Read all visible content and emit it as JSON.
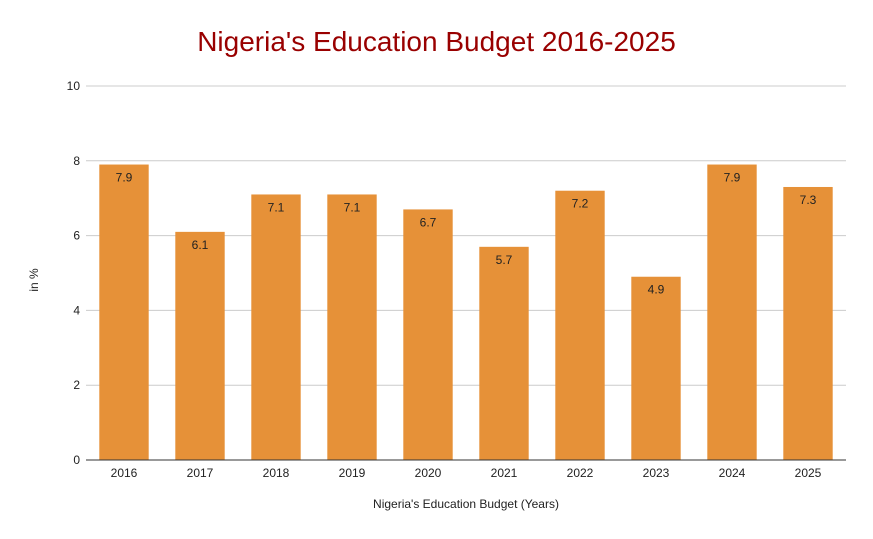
{
  "chart_data": {
    "type": "bar",
    "title": "Nigeria's Education Budget 2016-2025",
    "xlabel": "Nigeria's Education Budget (Years)",
    "ylabel": "in %",
    "categories": [
      "2016",
      "2017",
      "2018",
      "2019",
      "2020",
      "2021",
      "2022",
      "2023",
      "2024",
      "2025"
    ],
    "values": [
      7.9,
      6.1,
      7.1,
      7.1,
      6.7,
      5.7,
      7.2,
      4.9,
      7.9,
      7.3
    ],
    "data_labels": [
      "7.9",
      "6.1",
      "7.1",
      "7.1",
      "6.7",
      "5.7",
      "7.2",
      "4.9",
      "7.9",
      "7.3"
    ],
    "ylim": [
      0,
      10
    ],
    "yticks": [
      "0",
      "2",
      "4",
      "6",
      "8",
      "10"
    ],
    "grid": true,
    "legend": "none"
  },
  "colors": {
    "bar": "#e69138",
    "title": "#990000",
    "grid": "#cccccc",
    "axis": "#333333",
    "text": "#222222"
  }
}
